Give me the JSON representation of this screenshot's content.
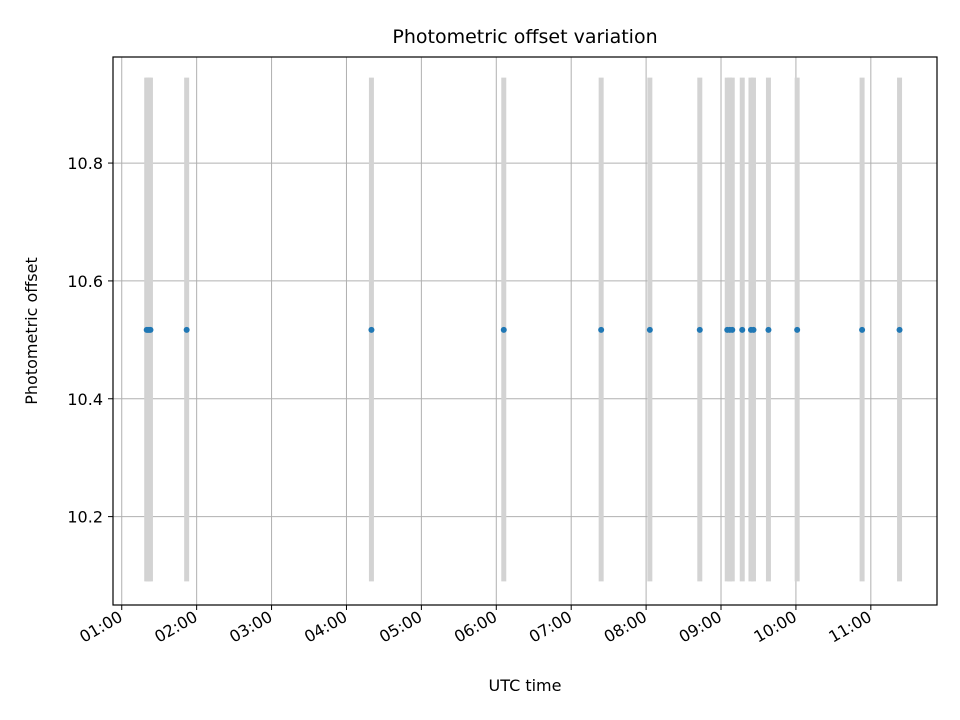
{
  "chart_data": {
    "type": "scatter",
    "title": "Photometric offset variation",
    "xlabel": "UTC time",
    "ylabel": "Photometric offset",
    "x_ticks": [
      "01:00",
      "02:00",
      "03:00",
      "04:00",
      "05:00",
      "06:00",
      "07:00",
      "08:00",
      "09:00",
      "10:00",
      "11:00"
    ],
    "y_ticks": [
      "10.2",
      "10.4",
      "10.6",
      "10.8"
    ],
    "xlim": [
      "00:53",
      "11:53"
    ],
    "ylim": [
      10.05,
      10.98
    ],
    "grid": true,
    "point_color": "#1f77b4",
    "band_color": "#d3d3d3",
    "band_range": [
      10.09,
      10.945
    ],
    "series": [
      {
        "x": [
          "01:20",
          "01:21",
          "01:22",
          "01:23",
          "01:52",
          "04:20",
          "06:06",
          "07:24",
          "08:03",
          "08:43",
          "09:05",
          "09:07",
          "09:09",
          "09:17",
          "09:24",
          "09:26",
          "09:38",
          "10:01",
          "10:53",
          "11:23"
        ],
        "y": [
          10.517,
          10.517,
          10.517,
          10.517,
          10.517,
          10.517,
          10.517,
          10.517,
          10.517,
          10.517,
          10.517,
          10.517,
          10.517,
          10.517,
          10.517,
          10.517,
          10.517,
          10.517,
          10.517,
          10.517
        ]
      }
    ]
  }
}
